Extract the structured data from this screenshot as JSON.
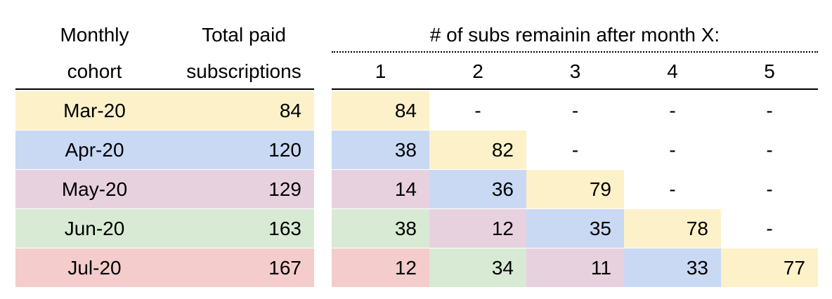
{
  "headers": {
    "cohort": [
      "Monthly",
      "cohort"
    ],
    "total": [
      "Total paid",
      "subscriptions"
    ],
    "group": "# of subs remainin after month X:",
    "months": [
      "1",
      "2",
      "3",
      "4",
      "5"
    ]
  },
  "colors": {
    "month_1": "#fdf1c9",
    "month_2": "#c9d9f4",
    "month_3": "#e8d1df",
    "month_4": "#d8ead3",
    "month_5": "#f4cccc"
  },
  "chart_data": {
    "type": "table",
    "columns": [
      "Monthly cohort",
      "Total paid subscriptions",
      "1",
      "2",
      "3",
      "4",
      "5"
    ],
    "rows": [
      {
        "cohort": "Mar-20",
        "total": "84",
        "values": [
          "84",
          "-",
          "-",
          "-",
          "-"
        ]
      },
      {
        "cohort": "Apr-20",
        "total": "120",
        "values": [
          "38",
          "82",
          "-",
          "-",
          "-"
        ]
      },
      {
        "cohort": "May-20",
        "total": "129",
        "values": [
          "14",
          "36",
          "79",
          "-",
          "-"
        ]
      },
      {
        "cohort": "Jun-20",
        "total": "163",
        "values": [
          "38",
          "12",
          "35",
          "78",
          "-"
        ]
      },
      {
        "cohort": "Jul-20",
        "total": "167",
        "values": [
          "12",
          "34",
          "11",
          "33",
          "77"
        ]
      }
    ]
  }
}
